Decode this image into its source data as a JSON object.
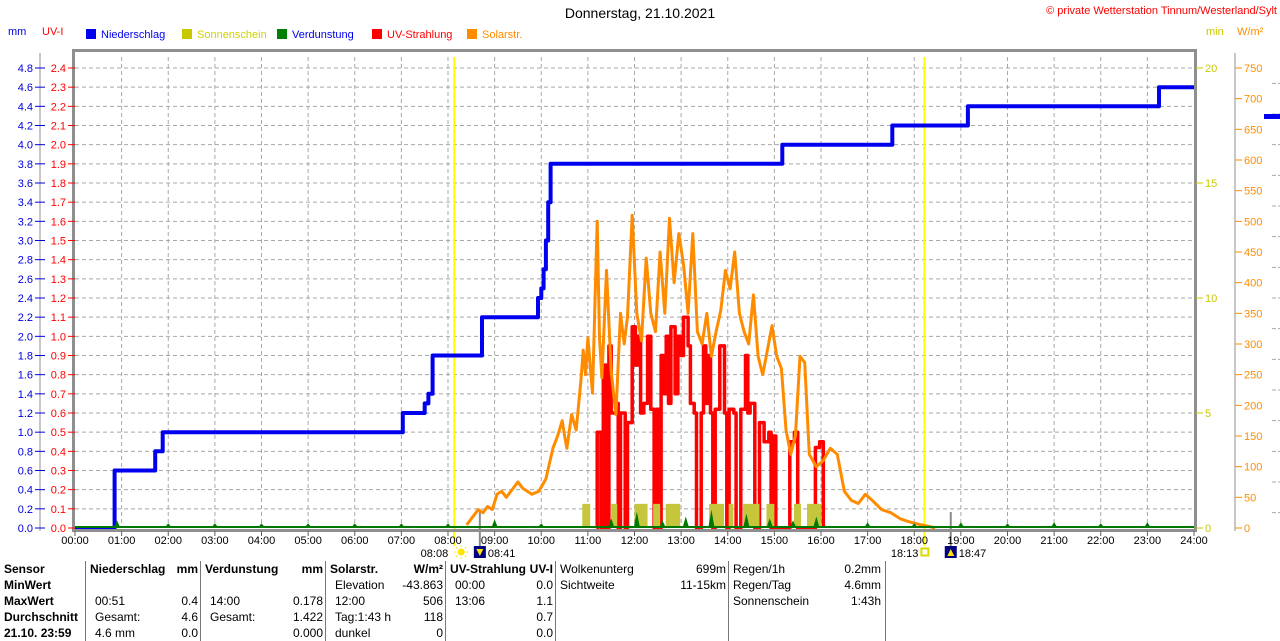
{
  "header": {
    "title": "Donnerstag, 21.10.2021",
    "copyright": "© private Wetterstation Tinnum/Westerland/Sylt"
  },
  "colors": {
    "grid": "#a8a8a8",
    "border": "#8f8f8f",
    "axis_line": "#8f8f8f",
    "baseline_green": "#007800",
    "sun_line": "#ffff00",
    "moon_line": "#8a8a8a",
    "text": "#000000",
    "copyright": "#ff0000",
    "moon_icon_bg": "#000080",
    "sun_icon": "#ffe600",
    "right_edge_marker": "#0000ee"
  },
  "legend": [
    {
      "label": "Niederschlag",
      "swatch": "#0000ee",
      "text_color": "#0000ee"
    },
    {
      "label": "Sonnenschein",
      "swatch": "#c8c800",
      "text_color": "#d2d200"
    },
    {
      "label": "Verdunstung",
      "swatch": "#008000",
      "text_color": "#0000ee"
    },
    {
      "label": "UV-Strahlung",
      "swatch": "#ff0000",
      "text_color": "#ff0000"
    },
    {
      "label": "Solarstr.",
      "swatch": "#ff8c00",
      "text_color": "#ff8c00"
    }
  ],
  "chart_data": {
    "type": "line",
    "title": "Donnerstag, 21.10.2021",
    "grid": true,
    "legend_position": "top",
    "x_hours": [
      "00:00",
      "01:00",
      "02:00",
      "03:00",
      "04:00",
      "05:00",
      "06:00",
      "07:00",
      "08:00",
      "09:00",
      "10:00",
      "11:00",
      "12:00",
      "13:00",
      "14:00",
      "15:00",
      "16:00",
      "17:00",
      "18:00",
      "19:00",
      "20:00",
      "21:00",
      "22:00",
      "23:00",
      "24:00"
    ],
    "axes": {
      "mm": {
        "unit": "mm",
        "min": 0,
        "max": 4.8,
        "step": 0.2,
        "color": "#0000dd"
      },
      "uvi": {
        "unit": "UV-I",
        "min": 0,
        "max": 2.4,
        "step": 0.1,
        "color": "#ff0000"
      },
      "minutes": {
        "unit": "min",
        "min": 0,
        "max": 20,
        "step": 5,
        "color": "#c8c800"
      },
      "wm2": {
        "unit": "W/m²",
        "min": 0,
        "max": 750,
        "step": 50,
        "color": "#ff8c00"
      }
    },
    "markers": {
      "sunrise": {
        "time": "08:08",
        "hour": 8.133,
        "icon": "sun-icon"
      },
      "moonset": {
        "time": "08:41",
        "hour": 8.683,
        "icon": "moon-down-icon"
      },
      "sunset": {
        "time": "18:13",
        "hour": 18.217,
        "icon": "sun-outline-icon"
      },
      "moonrise": {
        "time": "18:47",
        "hour": 18.783,
        "icon": "moon-up-icon"
      }
    },
    "series": [
      {
        "name": "Niederschlag",
        "unit": "mm",
        "axis": "mm",
        "color": "#0000ee",
        "style": "step",
        "width": 4,
        "points": [
          [
            0,
            0
          ],
          [
            0.85,
            0.6
          ],
          [
            1.72,
            0.8
          ],
          [
            1.88,
            1.0
          ],
          [
            7.03,
            1.2
          ],
          [
            7.5,
            1.3
          ],
          [
            7.58,
            1.4
          ],
          [
            7.67,
            1.8
          ],
          [
            8.73,
            2.2
          ],
          [
            9.93,
            2.4
          ],
          [
            10.0,
            2.5
          ],
          [
            10.05,
            2.7
          ],
          [
            10.1,
            3.0
          ],
          [
            10.15,
            3.4
          ],
          [
            10.2,
            3.8
          ],
          [
            15.17,
            4.0
          ],
          [
            17.53,
            4.2
          ],
          [
            19.15,
            4.4
          ],
          [
            23.25,
            4.6
          ],
          [
            24,
            4.6
          ]
        ]
      },
      {
        "name": "UV-Strahlung",
        "unit": "UV-I",
        "axis": "uvi",
        "color": "#ff0000",
        "style": "step",
        "width": 3.5,
        "points": [
          [
            11.18,
            0
          ],
          [
            11.2,
            0.5
          ],
          [
            11.28,
            0
          ],
          [
            11.33,
            0.85
          ],
          [
            11.4,
            0
          ],
          [
            11.45,
            0.95
          ],
          [
            11.5,
            0.6
          ],
          [
            11.62,
            0.65
          ],
          [
            11.65,
            0
          ],
          [
            11.7,
            0.6
          ],
          [
            11.8,
            0
          ],
          [
            11.85,
            0.55
          ],
          [
            11.95,
            1.05
          ],
          [
            12.02,
            0.85
          ],
          [
            12.07,
            1.0
          ],
          [
            12.13,
            0.6
          ],
          [
            12.2,
            0.65
          ],
          [
            12.28,
            1.0
          ],
          [
            12.35,
            0.62
          ],
          [
            12.42,
            0
          ],
          [
            12.47,
            0.62
          ],
          [
            12.52,
            0
          ],
          [
            12.57,
            0.9
          ],
          [
            12.63,
            0.7
          ],
          [
            12.68,
            1.0
          ],
          [
            12.73,
            0.65
          ],
          [
            12.78,
            1.05
          ],
          [
            12.87,
            0.7
          ],
          [
            12.93,
            1.0
          ],
          [
            13.0,
            0.9
          ],
          [
            13.05,
            1.1
          ],
          [
            13.15,
            0.95
          ],
          [
            13.2,
            0.65
          ],
          [
            13.28,
            0.6
          ],
          [
            13.33,
            0
          ],
          [
            13.43,
            0.6
          ],
          [
            13.48,
            0.95
          ],
          [
            13.53,
            0.65
          ],
          [
            13.58,
            0.9
          ],
          [
            13.63,
            0.6
          ],
          [
            13.68,
            0
          ],
          [
            13.73,
            0.62
          ],
          [
            13.83,
            0.95
          ],
          [
            13.93,
            0.6
          ],
          [
            13.98,
            0
          ],
          [
            14.03,
            0.62
          ],
          [
            14.13,
            0.6
          ],
          [
            14.18,
            0
          ],
          [
            14.28,
            0.62
          ],
          [
            14.38,
            0.9
          ],
          [
            14.43,
            0.6
          ],
          [
            14.48,
            0.65
          ],
          [
            14.58,
            0
          ],
          [
            14.68,
            0.55
          ],
          [
            14.78,
            0.45
          ],
          [
            14.88,
            0.5
          ],
          [
            14.93,
            0
          ],
          [
            14.98,
            0.48
          ],
          [
            15.03,
            0
          ],
          [
            15.33,
            0.45
          ],
          [
            15.43,
            0.5
          ],
          [
            15.5,
            0
          ],
          [
            15.88,
            0.42
          ],
          [
            15.97,
            0.45
          ],
          [
            16.05,
            0
          ]
        ]
      },
      {
        "name": "Solarstr.",
        "unit": "W/m²",
        "axis": "wm2",
        "color": "#ff8c00",
        "style": "line",
        "width": 3,
        "points": [
          [
            8.4,
            5
          ],
          [
            8.55,
            20
          ],
          [
            8.65,
            30
          ],
          [
            8.75,
            25
          ],
          [
            8.85,
            35
          ],
          [
            8.95,
            30
          ],
          [
            9.05,
            55
          ],
          [
            9.15,
            60
          ],
          [
            9.25,
            50
          ],
          [
            9.4,
            65
          ],
          [
            9.5,
            75
          ],
          [
            9.6,
            65
          ],
          [
            9.7,
            60
          ],
          [
            9.8,
            55
          ],
          [
            9.95,
            60
          ],
          [
            10.1,
            80
          ],
          [
            10.25,
            130
          ],
          [
            10.35,
            150
          ],
          [
            10.45,
            175
          ],
          [
            10.5,
            150
          ],
          [
            10.55,
            130
          ],
          [
            10.65,
            185
          ],
          [
            10.75,
            160
          ],
          [
            10.85,
            240
          ],
          [
            10.9,
            290
          ],
          [
            10.95,
            250
          ],
          [
            11.0,
            310
          ],
          [
            11.1,
            220
          ],
          [
            11.2,
            500
          ],
          [
            11.25,
            310
          ],
          [
            11.3,
            245
          ],
          [
            11.4,
            420
          ],
          [
            11.5,
            255
          ],
          [
            11.6,
            185
          ],
          [
            11.7,
            350
          ],
          [
            11.78,
            300
          ],
          [
            11.85,
            345
          ],
          [
            11.95,
            510
          ],
          [
            12.05,
            350
          ],
          [
            12.15,
            305
          ],
          [
            12.25,
            440
          ],
          [
            12.35,
            350
          ],
          [
            12.45,
            320
          ],
          [
            12.55,
            450
          ],
          [
            12.65,
            350
          ],
          [
            12.75,
            505
          ],
          [
            12.85,
            400
          ],
          [
            12.95,
            480
          ],
          [
            13.05,
            430
          ],
          [
            13.15,
            350
          ],
          [
            13.25,
            480
          ],
          [
            13.35,
            320
          ],
          [
            13.45,
            300
          ],
          [
            13.55,
            350
          ],
          [
            13.65,
            280
          ],
          [
            13.75,
            320
          ],
          [
            13.85,
            355
          ],
          [
            13.95,
            420
          ],
          [
            14.05,
            390
          ],
          [
            14.15,
            450
          ],
          [
            14.25,
            350
          ],
          [
            14.35,
            320
          ],
          [
            14.45,
            300
          ],
          [
            14.55,
            380
          ],
          [
            14.65,
            280
          ],
          [
            14.75,
            250
          ],
          [
            14.85,
            290
          ],
          [
            14.95,
            330
          ],
          [
            15.05,
            280
          ],
          [
            15.15,
            260
          ],
          [
            15.25,
            160
          ],
          [
            15.35,
            120
          ],
          [
            15.45,
            150
          ],
          [
            15.55,
            280
          ],
          [
            15.65,
            270
          ],
          [
            15.75,
            120
          ],
          [
            15.9,
            100
          ],
          [
            16.05,
            110
          ],
          [
            16.2,
            130
          ],
          [
            16.35,
            120
          ],
          [
            16.5,
            60
          ],
          [
            16.65,
            45
          ],
          [
            16.8,
            40
          ],
          [
            16.95,
            55
          ],
          [
            17.1,
            45
          ],
          [
            17.3,
            30
          ],
          [
            17.5,
            25
          ],
          [
            17.7,
            15
          ],
          [
            17.9,
            10
          ],
          [
            18.1,
            6
          ],
          [
            18.3,
            3
          ],
          [
            18.45,
            0
          ]
        ]
      },
      {
        "name": "Sonnenschein",
        "unit": "min",
        "axis": "minutes",
        "color": "#c6c63c",
        "style": "bars",
        "bars": [
          [
            10.88,
            11.05,
            1.05
          ],
          [
            11.5,
            11.63,
            1.05
          ],
          [
            12.0,
            12.28,
            1.05
          ],
          [
            12.4,
            12.55,
            1.05
          ],
          [
            12.67,
            12.98,
            1.05
          ],
          [
            13.6,
            13.92,
            1.05
          ],
          [
            14.02,
            14.12,
            1.05
          ],
          [
            14.33,
            14.68,
            1.05
          ],
          [
            14.83,
            15.0,
            1.05
          ],
          [
            15.42,
            15.57,
            1.05
          ],
          [
            15.7,
            16.0,
            1.05
          ]
        ]
      },
      {
        "name": "Verdunstung",
        "unit": "mm",
        "axis": "mm",
        "color": "#007800",
        "style": "spikes",
        "spikes": [
          [
            0.9,
            0.08
          ],
          [
            2,
            0.05
          ],
          [
            3,
            0.05
          ],
          [
            4,
            0.05
          ],
          [
            5,
            0.05
          ],
          [
            6,
            0.05
          ],
          [
            7,
            0.05
          ],
          [
            8,
            0.05
          ],
          [
            9,
            0.09
          ],
          [
            10,
            0.05
          ],
          [
            11.5,
            0.1
          ],
          [
            12.05,
            0.17
          ],
          [
            12.6,
            0.08
          ],
          [
            13.1,
            0.12
          ],
          [
            13.65,
            0.19
          ],
          [
            14.4,
            0.15
          ],
          [
            14.9,
            0.1
          ],
          [
            15.4,
            0.08
          ],
          [
            15.9,
            0.12
          ],
          [
            17,
            0.06
          ],
          [
            18,
            0.05
          ],
          [
            19,
            0.06
          ],
          [
            20,
            0.05
          ],
          [
            21,
            0.06
          ],
          [
            22,
            0.05
          ],
          [
            23,
            0.06
          ]
        ]
      }
    ]
  },
  "table": {
    "row_labels": [
      "Sensor",
      "MinWert",
      "MaxWert",
      "Durchschnitt",
      "21.10. 23:59"
    ],
    "sensor_columns": [
      {
        "name": "Niederschlag",
        "unit": "mm",
        "cells": [
          [
            "",
            ""
          ],
          [
            "00:51",
            "0.4"
          ],
          [
            "Gesamt:",
            "4.6"
          ],
          [
            "4.6 mm",
            "0.0"
          ]
        ]
      },
      {
        "name": "Verdunstung",
        "unit": "mm",
        "cells": [
          [
            "",
            ""
          ],
          [
            "14:00",
            "0.178"
          ],
          [
            "Gesamt:",
            "1.422"
          ],
          [
            "",
            "0.000"
          ]
        ]
      },
      {
        "name": "Solarstr.",
        "unit": "W/m²",
        "cells": [
          [
            "Elevation",
            "-43.863"
          ],
          [
            "12:00",
            "506"
          ],
          [
            "Tag:1:43 h",
            "118"
          ],
          [
            "dunkel",
            "0"
          ]
        ]
      },
      {
        "name": "UV-Strahlung",
        "unit": "UV-I",
        "cells": [
          [
            "00:00",
            "0.0"
          ],
          [
            "13:06",
            "1.1"
          ],
          [
            "",
            "0.7"
          ],
          [
            "",
            "0.0"
          ]
        ]
      }
    ],
    "info_columns": [
      {
        "cells": [
          [
            "Wolkenunterg",
            "699m"
          ],
          [
            "Sichtweite",
            "11-15km"
          ]
        ]
      },
      {
        "cells": [
          [
            "Regen/1h",
            "0.2mm"
          ],
          [
            "Regen/Tag",
            "4.6mm"
          ],
          [
            "Sonnenschein",
            "1:43h"
          ]
        ]
      }
    ]
  }
}
